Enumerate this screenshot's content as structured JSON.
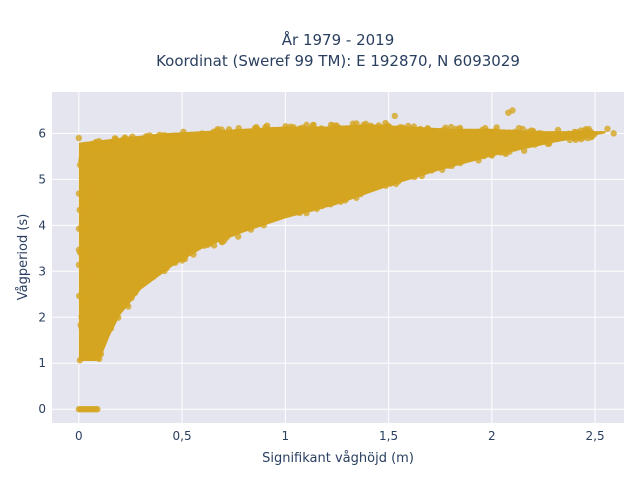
{
  "chart_data": {
    "type": "scatter",
    "title_line1": "År 1979 - 2019",
    "title_line2": "Koordinat (Sweref 99 TM): E 192870, N 6093029",
    "xlabel": "Signifikant våghöjd (m)",
    "ylabel": "Vågperiod (s)",
    "xlim": [
      -0.13,
      2.64
    ],
    "ylim": [
      -0.3,
      6.9
    ],
    "x_ticks": [
      0,
      0.5,
      1,
      1.5,
      2,
      2.5
    ],
    "x_tick_labels": [
      "0",
      "0,5",
      "1",
      "1,5",
      "2",
      "2,5"
    ],
    "y_ticks": [
      0,
      1,
      2,
      3,
      4,
      5,
      6
    ],
    "y_tick_labels": [
      "0",
      "1",
      "2",
      "3",
      "4",
      "5",
      "6"
    ],
    "grid": true,
    "marker_color": "#d4a520",
    "plot_bg": "#e5e5ef",
    "envelope": {
      "lower": [
        [
          0.1,
          1.05
        ],
        [
          0.15,
          1.6
        ],
        [
          0.2,
          2.05
        ],
        [
          0.3,
          2.6
        ],
        [
          0.45,
          3.1
        ],
        [
          0.6,
          3.5
        ],
        [
          0.8,
          3.85
        ],
        [
          1.0,
          4.15
        ],
        [
          1.25,
          4.45
        ],
        [
          1.5,
          4.85
        ],
        [
          1.75,
          5.2
        ],
        [
          2.0,
          5.5
        ],
        [
          2.3,
          5.8
        ],
        [
          2.55,
          6.0
        ]
      ],
      "upper": [
        [
          0.0,
          5.8
        ],
        [
          0.2,
          5.9
        ],
        [
          0.4,
          6.0
        ],
        [
          0.6,
          6.05
        ],
        [
          0.8,
          6.1
        ],
        [
          1.0,
          6.15
        ],
        [
          1.2,
          6.15
        ],
        [
          1.4,
          6.2
        ],
        [
          1.6,
          6.15
        ],
        [
          1.8,
          6.1
        ],
        [
          2.0,
          6.1
        ],
        [
          2.2,
          6.05
        ],
        [
          2.4,
          6.05
        ],
        [
          2.55,
          6.05
        ]
      ]
    },
    "notable_points": [
      {
        "x": 2.1,
        "y": 6.5
      },
      {
        "x": 2.08,
        "y": 6.45
      },
      {
        "x": 2.56,
        "y": 6.1
      },
      {
        "x": 2.59,
        "y": 6.0
      },
      {
        "x": 2.43,
        "y": 6.06
      },
      {
        "x": 2.2,
        "y": 6.05
      },
      {
        "x": 2.25,
        "y": 5.95
      },
      {
        "x": 1.53,
        "y": 6.38
      },
      {
        "x": 0.0,
        "y": 5.9
      }
    ],
    "zero_cluster": {
      "x_range": [
        0.0,
        0.09
      ],
      "y": 0
    }
  }
}
